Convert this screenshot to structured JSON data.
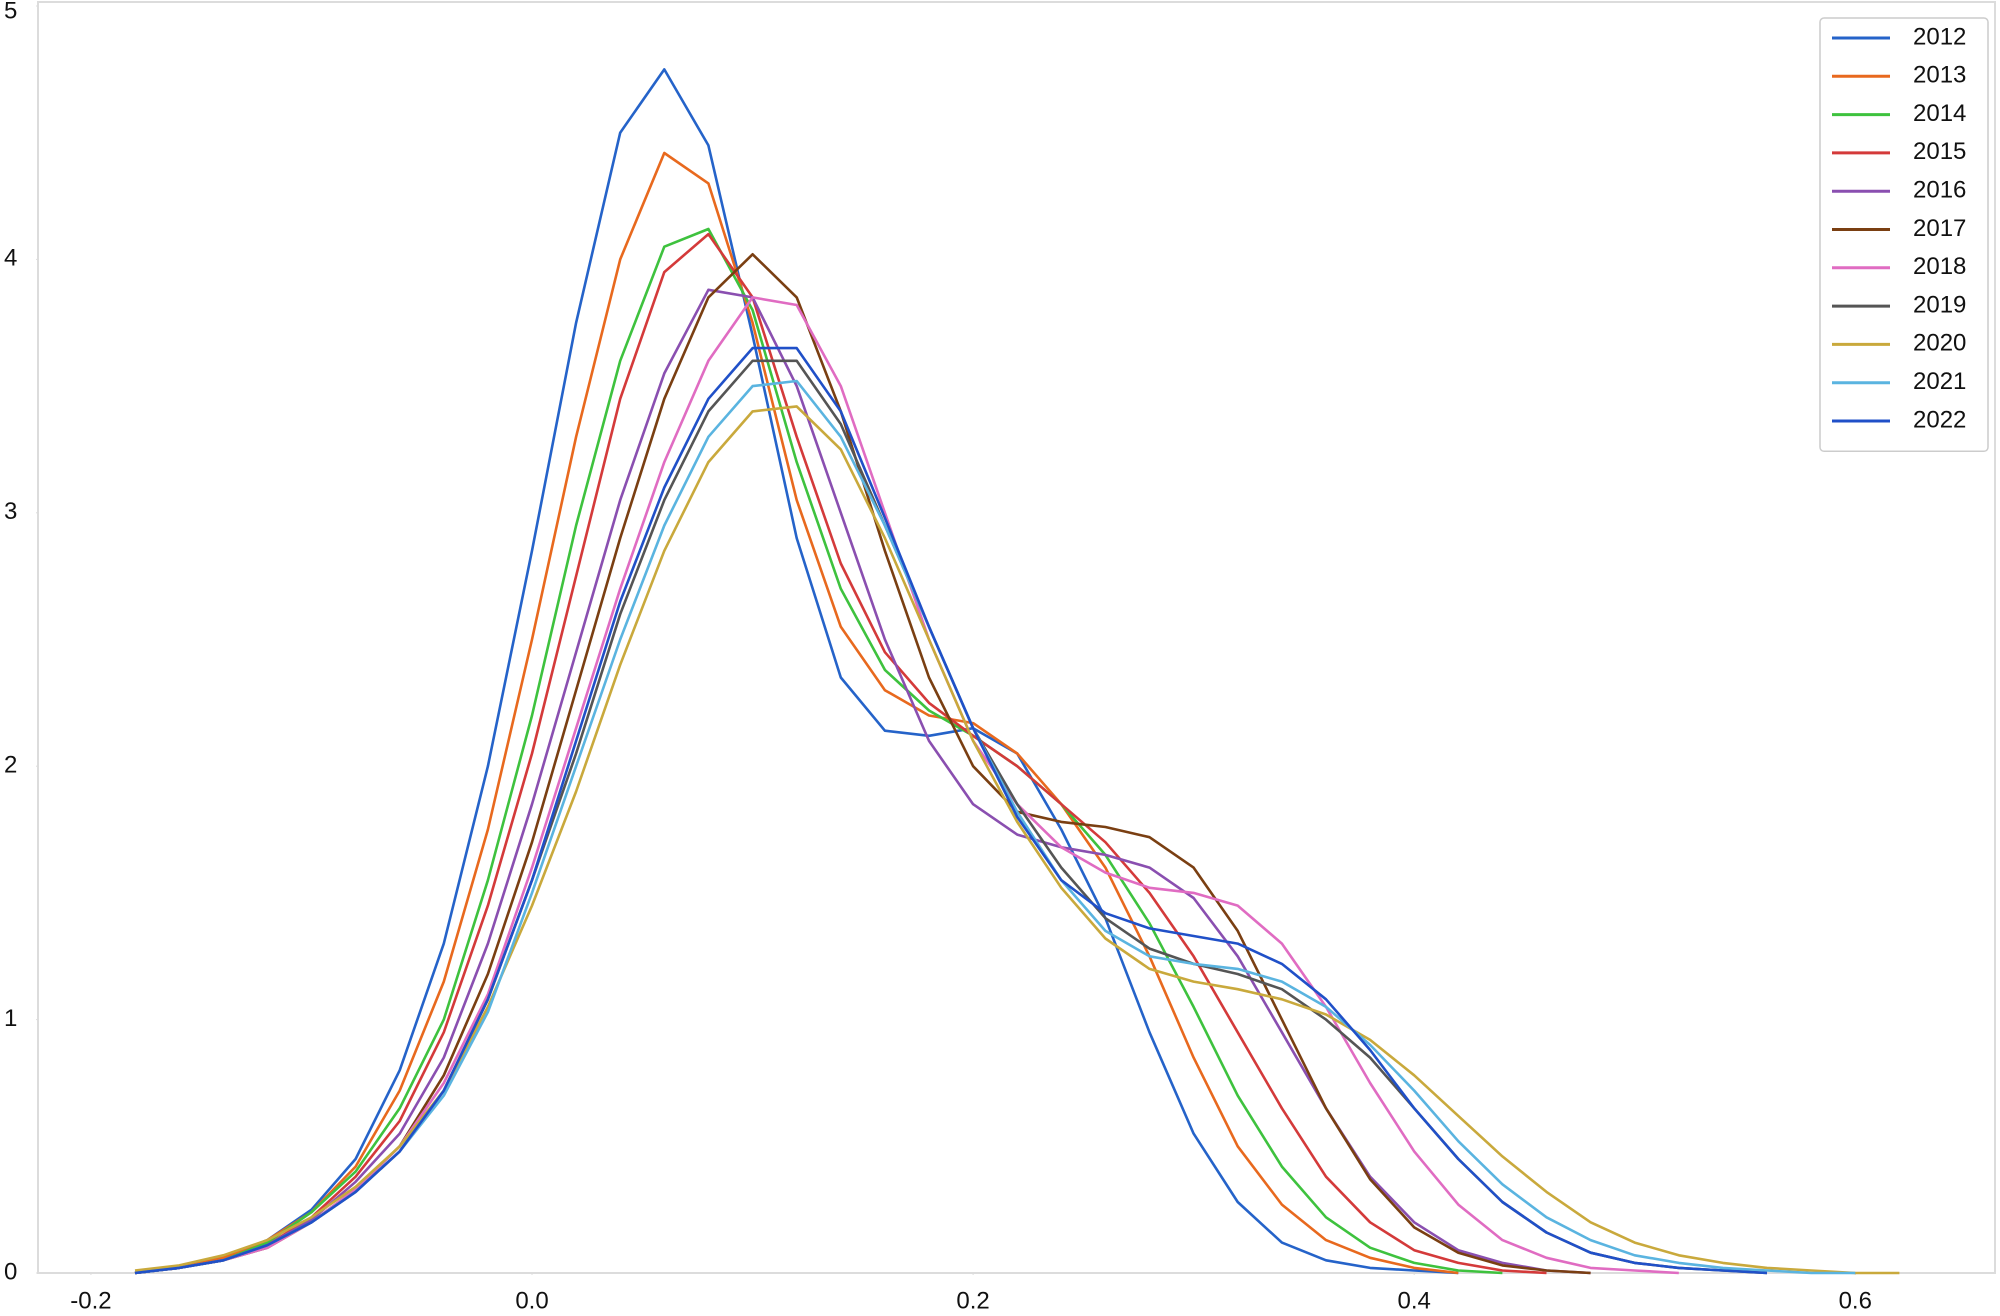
{
  "chart_data": {
    "type": "line",
    "x": [
      -0.18,
      -0.16,
      -0.14,
      -0.12,
      -0.1,
      -0.08,
      -0.06,
      -0.04,
      -0.02,
      0,
      0.02,
      0.04,
      0.06,
      0.08,
      0.1,
      0.12,
      0.14,
      0.16,
      0.18,
      0.2,
      0.22,
      0.24,
      0.26,
      0.28,
      0.3,
      0.32,
      0.34,
      0.36,
      0.38,
      0.4,
      0.42,
      0.44,
      0.46,
      0.48,
      0.5,
      0.52,
      0.54,
      0.56,
      0.58,
      0.6,
      0.62,
      0.64
    ],
    "series": [
      {
        "name": "2012",
        "color": "#2563c9",
        "values": [
          0,
          0.02,
          0.06,
          0.13,
          0.25,
          0.45,
          0.8,
          1.3,
          2.0,
          2.85,
          3.75,
          4.5,
          4.75,
          4.45,
          3.7,
          2.9,
          2.35,
          2.14,
          2.12,
          2.15,
          2.05,
          1.75,
          1.4,
          0.95,
          0.55,
          0.28,
          0.12,
          0.05,
          0.02,
          0.01,
          0,
          null,
          null,
          null,
          null,
          null,
          null,
          null,
          null,
          null,
          null,
          null
        ]
      },
      {
        "name": "2013",
        "color": "#e8691e",
        "values": [
          0,
          0.02,
          0.06,
          0.13,
          0.24,
          0.42,
          0.72,
          1.15,
          1.75,
          2.5,
          3.3,
          4.0,
          4.42,
          4.3,
          3.75,
          3.05,
          2.55,
          2.3,
          2.2,
          2.17,
          2.05,
          1.85,
          1.6,
          1.25,
          0.85,
          0.5,
          0.27,
          0.13,
          0.06,
          0.02,
          0,
          null,
          null,
          null,
          null,
          null,
          null,
          null,
          null,
          null,
          null,
          null
        ]
      },
      {
        "name": "2014",
        "color": "#3ec23e",
        "values": [
          0,
          0.02,
          0.05,
          0.12,
          0.24,
          0.4,
          0.65,
          1.0,
          1.55,
          2.2,
          2.95,
          3.6,
          4.05,
          4.12,
          3.8,
          3.2,
          2.7,
          2.38,
          2.22,
          2.12,
          2.0,
          1.85,
          1.65,
          1.38,
          1.05,
          0.7,
          0.42,
          0.22,
          0.1,
          0.04,
          0.01,
          0,
          null,
          null,
          null,
          null,
          null,
          null,
          null,
          null,
          null,
          null
        ]
      },
      {
        "name": "2015",
        "color": "#d43a3a",
        "values": [
          0,
          0.02,
          0.05,
          0.11,
          0.22,
          0.38,
          0.6,
          0.95,
          1.45,
          2.05,
          2.75,
          3.45,
          3.95,
          4.1,
          3.85,
          3.3,
          2.8,
          2.45,
          2.25,
          2.12,
          2.0,
          1.85,
          1.7,
          1.5,
          1.25,
          0.95,
          0.65,
          0.38,
          0.2,
          0.09,
          0.04,
          0.01,
          0,
          null,
          null,
          null,
          null,
          null,
          null,
          null,
          null,
          null
        ]
      },
      {
        "name": "2016",
        "color": "#8a4fb0",
        "values": [
          0,
          0.02,
          0.05,
          0.11,
          0.21,
          0.36,
          0.55,
          0.85,
          1.3,
          1.85,
          2.45,
          3.05,
          3.55,
          3.88,
          3.85,
          3.5,
          3.0,
          2.5,
          2.1,
          1.85,
          1.73,
          1.68,
          1.65,
          1.6,
          1.48,
          1.25,
          0.95,
          0.65,
          0.38,
          0.2,
          0.09,
          0.04,
          0.01,
          0,
          null,
          null,
          null,
          null,
          null,
          null,
          null,
          null
        ]
      },
      {
        "name": "2017",
        "color": "#7a3f12",
        "values": [
          0,
          0.02,
          0.05,
          0.1,
          0.2,
          0.33,
          0.5,
          0.78,
          1.18,
          1.7,
          2.3,
          2.9,
          3.45,
          3.85,
          4.02,
          3.85,
          3.4,
          2.85,
          2.35,
          2.0,
          1.82,
          1.78,
          1.76,
          1.72,
          1.6,
          1.35,
          1.0,
          0.65,
          0.37,
          0.18,
          0.08,
          0.03,
          0.01,
          0,
          null,
          null,
          null,
          null,
          null,
          null,
          null,
          null
        ]
      },
      {
        "name": "2018",
        "color": "#e06cc2",
        "values": [
          0,
          0.02,
          0.05,
          0.1,
          0.2,
          0.33,
          0.5,
          0.75,
          1.1,
          1.6,
          2.15,
          2.7,
          3.2,
          3.6,
          3.85,
          3.82,
          3.5,
          3.0,
          2.5,
          2.1,
          1.85,
          1.68,
          1.58,
          1.52,
          1.5,
          1.45,
          1.3,
          1.05,
          0.75,
          0.48,
          0.27,
          0.13,
          0.06,
          0.02,
          0.01,
          0,
          null,
          null,
          null,
          null,
          null,
          null
        ]
      },
      {
        "name": "2019",
        "color": "#555555",
        "values": [
          0,
          0.02,
          0.05,
          0.11,
          0.2,
          0.32,
          0.48,
          0.72,
          1.08,
          1.55,
          2.05,
          2.6,
          3.05,
          3.4,
          3.6,
          3.6,
          3.35,
          2.95,
          2.55,
          2.15,
          1.85,
          1.6,
          1.4,
          1.28,
          1.22,
          1.18,
          1.12,
          1.0,
          0.85,
          0.65,
          0.45,
          0.28,
          0.16,
          0.08,
          0.04,
          0.02,
          0.01,
          0,
          null,
          null,
          null,
          null
        ]
      },
      {
        "name": "2020",
        "color": "#c9a93c",
        "values": [
          0.01,
          0.03,
          0.07,
          0.13,
          0.22,
          0.34,
          0.5,
          0.72,
          1.05,
          1.45,
          1.9,
          2.4,
          2.85,
          3.2,
          3.4,
          3.42,
          3.25,
          2.9,
          2.5,
          2.1,
          1.78,
          1.52,
          1.32,
          1.2,
          1.15,
          1.12,
          1.08,
          1.02,
          0.92,
          0.78,
          0.62,
          0.46,
          0.32,
          0.2,
          0.12,
          0.07,
          0.04,
          0.02,
          0.01,
          0,
          0,
          null
        ]
      },
      {
        "name": "2021",
        "color": "#5ab4e0",
        "values": [
          0,
          0.02,
          0.05,
          0.11,
          0.2,
          0.32,
          0.48,
          0.7,
          1.03,
          1.5,
          2.0,
          2.5,
          2.95,
          3.3,
          3.5,
          3.52,
          3.3,
          2.95,
          2.55,
          2.15,
          1.82,
          1.55,
          1.35,
          1.25,
          1.22,
          1.2,
          1.15,
          1.05,
          0.9,
          0.72,
          0.52,
          0.35,
          0.22,
          0.13,
          0.07,
          0.04,
          0.02,
          0.01,
          0,
          0,
          null,
          null
        ]
      },
      {
        "name": "2022",
        "color": "#2050c8",
        "values": [
          0,
          0.02,
          0.05,
          0.11,
          0.2,
          0.32,
          0.48,
          0.72,
          1.08,
          1.55,
          2.1,
          2.65,
          3.1,
          3.45,
          3.65,
          3.65,
          3.4,
          2.98,
          2.55,
          2.15,
          1.8,
          1.55,
          1.42,
          1.36,
          1.33,
          1.3,
          1.22,
          1.08,
          0.88,
          0.65,
          0.45,
          0.28,
          0.16,
          0.08,
          0.04,
          0.02,
          0.01,
          0,
          null,
          null,
          null,
          null
        ]
      }
    ],
    "xlim": [
      -0.224,
      0.662
    ],
    "ylim": [
      0,
      5
    ],
    "xticks": [
      -0.2,
      {
        "value": 0,
        "label": "0.0"
      },
      0.2,
      0.4,
      0.6
    ],
    "yticks": [
      0,
      1,
      2,
      3,
      4,
      5
    ],
    "grid": false,
    "legend": "upper right"
  }
}
